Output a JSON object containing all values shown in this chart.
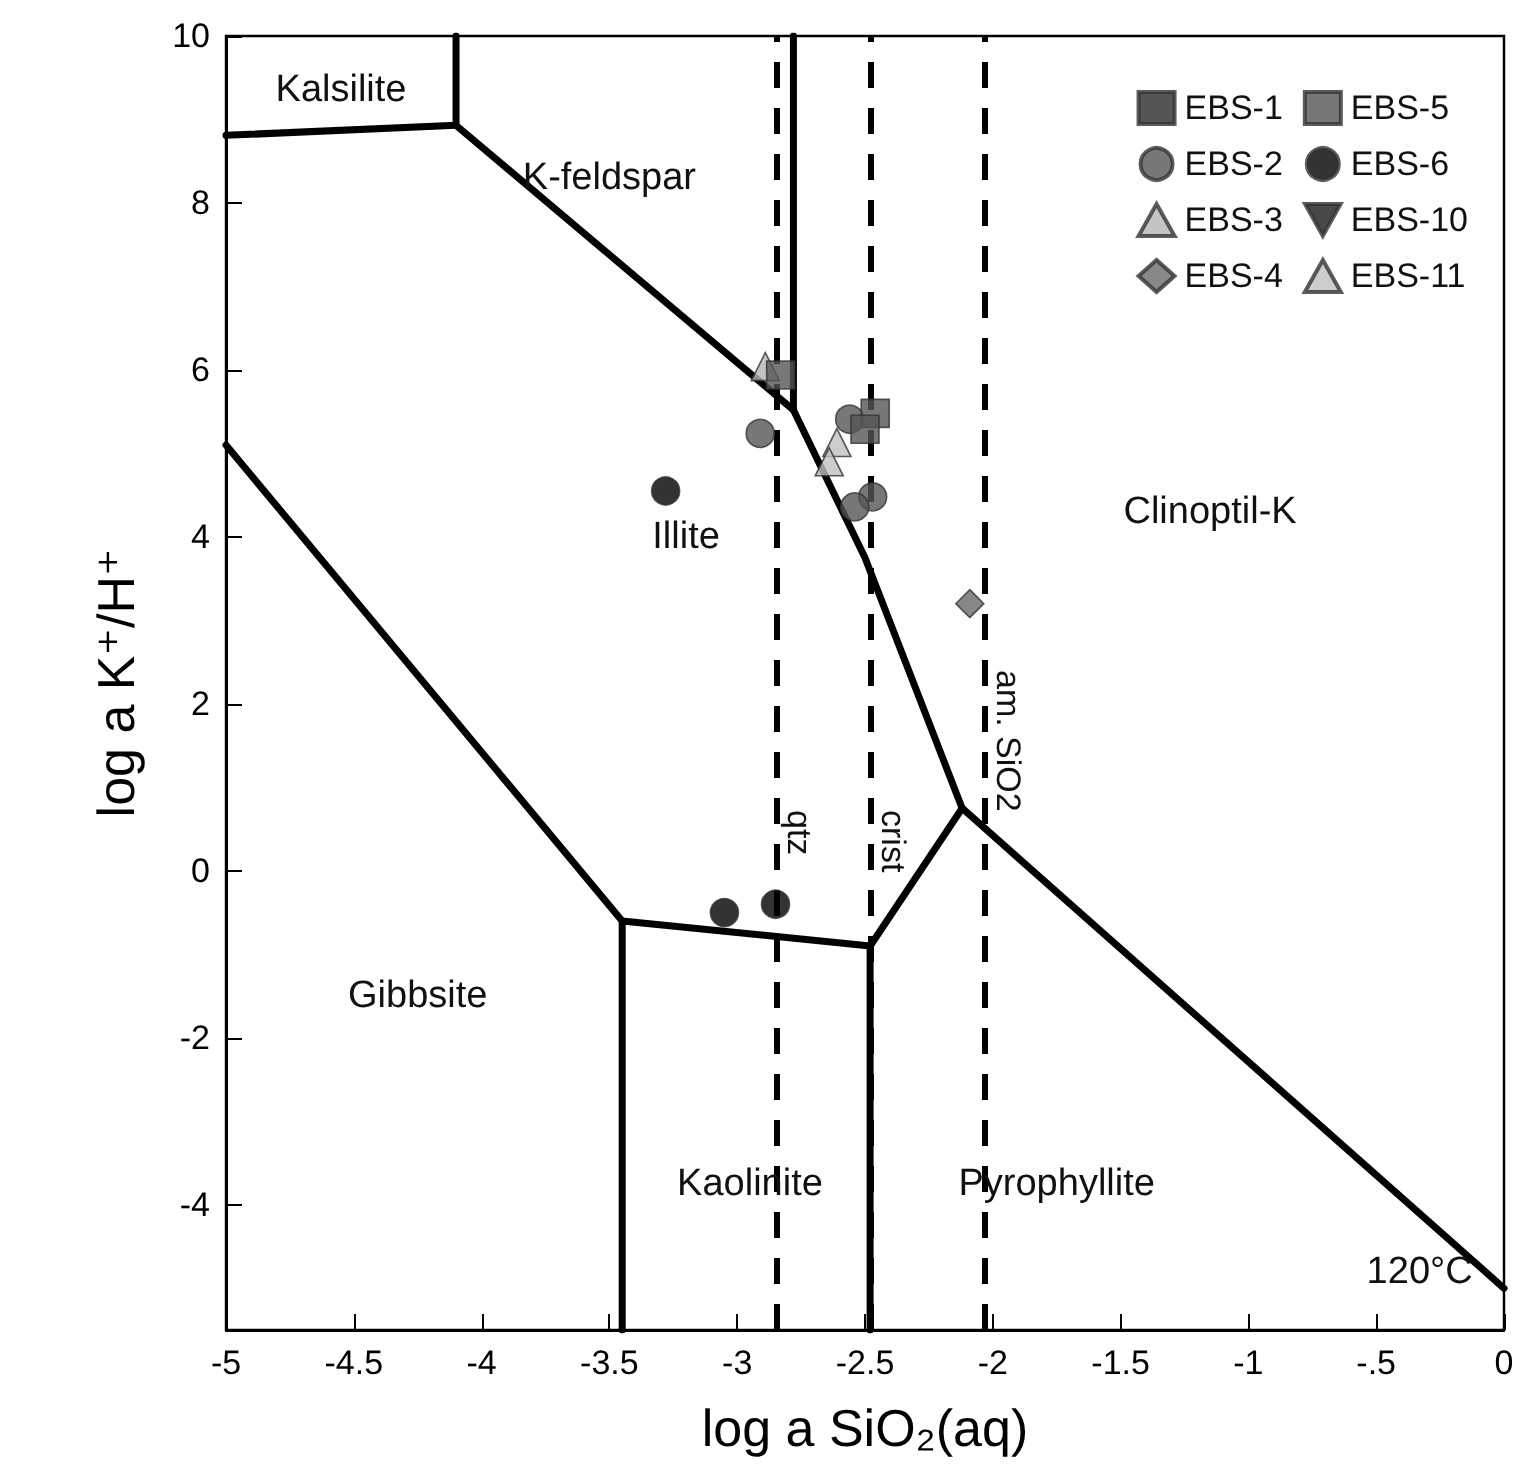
{
  "chart_data": {
    "type": "scatter",
    "xlabel": "log a SiO₂(aq)",
    "ylabel": "log a K⁺/H⁺",
    "xlim": [
      -5,
      0
    ],
    "xticks": [
      -5,
      -4.5,
      -4,
      -3.5,
      -3,
      -2.5,
      -2,
      -1.5,
      -1,
      {
        "value": -0.5,
        "label": "-.5"
      },
      0
    ],
    "ylim": [
      -5.5,
      10
    ],
    "yticks": [
      -4,
      -2,
      0,
      2,
      4,
      6,
      8,
      10
    ],
    "grid": false,
    "legend": "top right",
    "series": [
      {
        "name": "EBS-1",
        "marker": "square",
        "color": "#2a2a2a"
      },
      {
        "name": "EBS-2",
        "marker": "circle",
        "color": "#555555",
        "x": [
          -2.91,
          -2.56,
          -2.47,
          -2.54
        ],
        "values": [
          5.24,
          5.41,
          4.48,
          4.36
        ]
      },
      {
        "name": "EBS-3",
        "marker": "triangle",
        "color": "#b5b5b5",
        "x": [
          -2.89
        ],
        "values": [
          6.04
        ]
      },
      {
        "name": "EBS-4",
        "marker": "diamond",
        "color": "#6a6a6a",
        "x": [
          -2.09
        ],
        "values": [
          3.2
        ]
      },
      {
        "name": "EBS-5",
        "marker": "square",
        "color": "#555555",
        "x": [
          -2.83,
          -2.46,
          -2.5
        ],
        "values": [
          5.94,
          5.48,
          5.29
        ]
      },
      {
        "name": "EBS-6",
        "marker": "circle",
        "color": "#000000",
        "x": [
          -3.28,
          -3.05,
          -2.85
        ],
        "values": [
          4.55,
          -0.5,
          -0.4
        ]
      },
      {
        "name": "EBS-10",
        "marker": "triangle-down",
        "color": "#1a1a1a"
      },
      {
        "name": "EBS-11",
        "marker": "triangle",
        "color": "#c0c0c0",
        "x": [
          -2.61,
          -2.64
        ],
        "values": [
          5.13,
          4.9
        ]
      },
      {
        "type": "line",
        "marker": "none",
        "color": "#000000",
        "x": [
          -5,
          -4.1,
          -4.1
        ],
        "values": [
          8.81,
          8.93,
          10
        ]
      },
      {
        "type": "line",
        "marker": "none",
        "color": "#000000",
        "x": [
          -4.1,
          -2.78,
          -2.78
        ],
        "values": [
          8.93,
          5.52,
          10
        ]
      },
      {
        "type": "line",
        "marker": "none",
        "color": "#000000",
        "x": [
          -2.78,
          -2.5,
          -2.12,
          0
        ],
        "values": [
          5.52,
          3.75,
          0.75,
          -5.0
        ]
      },
      {
        "type": "line",
        "marker": "none",
        "color": "#000000",
        "x": [
          -5,
          -3.45,
          -2.48,
          -2.12
        ],
        "values": [
          5.1,
          -0.6,
          -0.9,
          0.75
        ]
      },
      {
        "type": "line",
        "marker": "none",
        "color": "#000000",
        "x": [
          -3.45,
          -3.45
        ],
        "values": [
          -0.6,
          -5.5
        ]
      },
      {
        "type": "line",
        "marker": "none",
        "color": "#000000",
        "x": [
          -2.48,
          -2.48
        ],
        "values": [
          -0.9,
          -5.5
        ]
      }
    ],
    "ref_lines": [
      {
        "axis": "x",
        "value": -2.85,
        "label": "qtz",
        "color": "#000000",
        "line_style": "dashed"
      },
      {
        "axis": "x",
        "value": -2.48,
        "label": "crist",
        "color": "#000000",
        "line_style": "dashed"
      },
      {
        "axis": "x",
        "value": -2.03,
        "label": "am. SiO2",
        "color": "#000000",
        "line_style": "dashed"
      }
    ],
    "annotations": [
      "Kalsilite",
      "K-feldspar",
      "Illite",
      "Clinoptil-K",
      "Gibbsite",
      "Kaolinite",
      "Pyrophyllite",
      "120°C"
    ]
  }
}
